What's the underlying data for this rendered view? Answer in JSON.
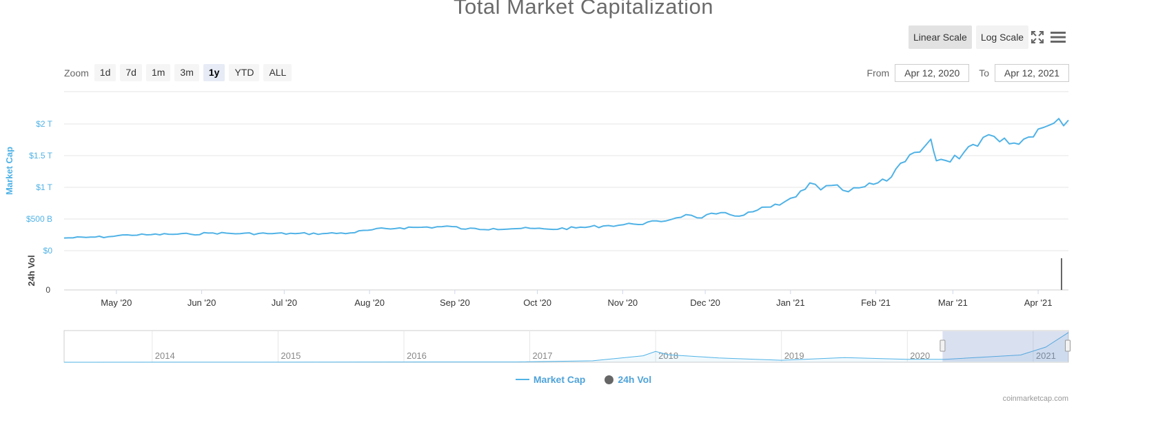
{
  "title": "Total Market Capitalization",
  "scale_buttons": [
    {
      "label": "Linear Scale",
      "active": true
    },
    {
      "label": "Log Scale",
      "active": false
    }
  ],
  "zoom": {
    "label": "Zoom",
    "buttons": [
      "1d",
      "7d",
      "1m",
      "3m",
      "1y",
      "YTD",
      "ALL"
    ],
    "active": "1y"
  },
  "range": {
    "from_label": "From",
    "from_value": "Apr 12, 2020",
    "to_label": "To",
    "to_value": "Apr 12, 2021"
  },
  "legend": [
    "Market Cap",
    "24h Vol"
  ],
  "credits": "coinmarketcap.com",
  "icons": [
    "fullscreen-icon",
    "menu-icon"
  ],
  "colors": {
    "market_cap": "#4fb2e6",
    "volume": "#666666",
    "navigator_mask": "#d9dff0"
  },
  "chart_data": [
    {
      "type": "line",
      "title": "Total Market Capitalization",
      "ylabel": "Market Cap",
      "y_ticks": [
        {
          "label": "$0",
          "value": 0
        },
        {
          "label": "$500 B",
          "value": 0.5
        },
        {
          "label": "$1 T",
          "value": 1.0
        },
        {
          "label": "$1.5 T",
          "value": 1.5
        },
        {
          "label": "$2 T",
          "value": 2.0
        }
      ],
      "ylim": [
        0,
        2.0
      ],
      "x_ticks": [
        "May '20",
        "Jun '20",
        "Jul '20",
        "Aug '20",
        "Sep '20",
        "Oct '20",
        "Nov '20",
        "Dec '20",
        "Jan '21",
        "Feb '21",
        "Mar '21",
        "Apr '21"
      ],
      "x_range": [
        "2020-04-12",
        "2021-04-12"
      ],
      "grid": true,
      "series": [
        {
          "name": "Market Cap",
          "unit": "T USD",
          "points": [
            [
              "2020-04-12",
              0.2
            ],
            [
              "2020-04-20",
              0.21
            ],
            [
              "2020-04-28",
              0.22
            ],
            [
              "2020-05-05",
              0.25
            ],
            [
              "2020-05-12",
              0.25
            ],
            [
              "2020-05-20",
              0.26
            ],
            [
              "2020-05-28",
              0.26
            ],
            [
              "2020-06-05",
              0.28
            ],
            [
              "2020-06-15",
              0.27
            ],
            [
              "2020-06-25",
              0.27
            ],
            [
              "2020-07-05",
              0.27
            ],
            [
              "2020-07-15",
              0.27
            ],
            [
              "2020-07-25",
              0.28
            ],
            [
              "2020-08-02",
              0.33
            ],
            [
              "2020-08-12",
              0.36
            ],
            [
              "2020-08-20",
              0.37
            ],
            [
              "2020-08-31",
              0.38
            ],
            [
              "2020-09-05",
              0.34
            ],
            [
              "2020-09-15",
              0.35
            ],
            [
              "2020-09-25",
              0.35
            ],
            [
              "2020-10-05",
              0.34
            ],
            [
              "2020-10-15",
              0.36
            ],
            [
              "2020-10-25",
              0.39
            ],
            [
              "2020-11-05",
              0.42
            ],
            [
              "2020-11-15",
              0.46
            ],
            [
              "2020-11-24",
              0.57
            ],
            [
              "2020-11-28",
              0.52
            ],
            [
              "2020-12-05",
              0.58
            ],
            [
              "2020-12-15",
              0.56
            ],
            [
              "2020-12-20",
              0.64
            ],
            [
              "2020-12-28",
              0.72
            ],
            [
              "2021-01-03",
              0.85
            ],
            [
              "2021-01-08",
              1.07
            ],
            [
              "2021-01-12",
              0.96
            ],
            [
              "2021-01-16",
              1.03
            ],
            [
              "2021-01-22",
              0.93
            ],
            [
              "2021-01-28",
              1.01
            ],
            [
              "2021-02-05",
              1.1
            ],
            [
              "2021-02-10",
              1.38
            ],
            [
              "2021-02-15",
              1.55
            ],
            [
              "2021-02-21",
              1.76
            ],
            [
              "2021-02-23",
              1.42
            ],
            [
              "2021-02-28",
              1.4
            ],
            [
              "2021-03-05",
              1.55
            ],
            [
              "2021-03-10",
              1.65
            ],
            [
              "2021-03-14",
              1.83
            ],
            [
              "2021-03-18",
              1.72
            ],
            [
              "2021-03-25",
              1.68
            ],
            [
              "2021-04-01",
              1.92
            ],
            [
              "2021-04-05",
              1.98
            ],
            [
              "2021-04-12",
              2.06
            ]
          ]
        },
        {
          "name": "24h Vol",
          "note": "volume pane shows only a thin baseline and a spike at the last date",
          "y_ticks": [
            {
              "label": "0",
              "value": 0
            }
          ],
          "spike_date": "2021-04-12"
        }
      ]
    },
    {
      "type": "area",
      "role": "navigator",
      "x_range": [
        "2013",
        "2021"
      ],
      "x_ticks": [
        "2014",
        "2015",
        "2016",
        "2017",
        "2018",
        "2019",
        "2020",
        "2021"
      ],
      "selected_range": [
        "Apr 12, 2020",
        "Apr 12, 2021"
      ],
      "series": [
        {
          "name": "Market Cap",
          "points": [
            [
              2013.3,
              0.0
            ],
            [
              2016.9,
              0.02
            ],
            [
              2017.5,
              0.1
            ],
            [
              2017.9,
              0.45
            ],
            [
              2018.0,
              0.75
            ],
            [
              2018.1,
              0.52
            ],
            [
              2018.5,
              0.3
            ],
            [
              2019.0,
              0.14
            ],
            [
              2019.5,
              0.32
            ],
            [
              2020.0,
              0.2
            ],
            [
              2020.3,
              0.2
            ],
            [
              2020.9,
              0.5
            ],
            [
              2021.1,
              1.05
            ],
            [
              2021.28,
              2.06
            ]
          ]
        }
      ]
    }
  ]
}
